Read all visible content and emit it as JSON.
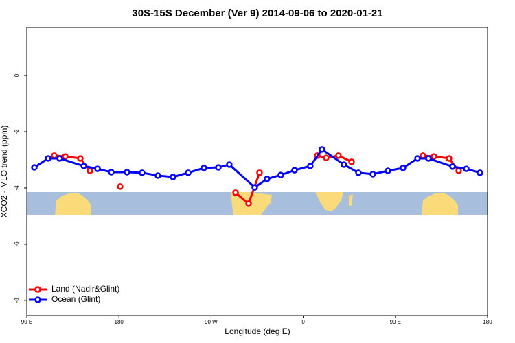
{
  "chart_data": {
    "type": "line",
    "title": "30S-15S December (Ver 9)   2014-09-06 to 2020-01-21",
    "x_label": "Longitude (deg E)",
    "y_label": "XCO2 - MLO trend (ppm)",
    "xlim": [
      90,
      540
    ],
    "ylim": [
      -8.54,
      1.71
    ],
    "xticks": [
      {
        "value": 90,
        "label": "90 E"
      },
      180,
      {
        "value": 270,
        "label": "90 W"
      },
      {
        "value": 360,
        "label": "0"
      },
      {
        "value": 450,
        "label": "90 E"
      },
      {
        "value": 540,
        "label": "180"
      }
    ],
    "yticks": [
      0,
      -2,
      -4,
      -6,
      -8
    ],
    "legend": "bottom-left",
    "series": [
      {
        "name": "Land (Nadir&Glint)",
        "color": "#ff0000",
        "x": [
          116.8,
          127.6,
          142.3,
          151.7,
          null,
          181.2,
          null,
          293.9,
          306.6,
          317.3,
          null,
          373.7,
          382.4,
          394.4,
          407.2,
          null,
          476.9,
          487.7,
          502.4,
          511.8
        ],
        "values": [
          -2.85,
          -2.88,
          -2.95,
          -3.39,
          null,
          -3.95,
          null,
          -4.17,
          -4.56,
          -3.46,
          null,
          -2.85,
          -2.93,
          -2.85,
          -3.07,
          null,
          -2.85,
          -2.88,
          -2.95,
          -3.39
        ]
      },
      {
        "name": "Ocean (Glint)",
        "color": "#0000ff",
        "x": [
          97.4,
          110.8,
          122.2,
          145.7,
          159.1,
          172.5,
          187.9,
          202.6,
          218.1,
          232.8,
          247.6,
          263.0,
          277.1,
          287.8,
          312.6,
          324.7,
          338.1,
          351.5,
          366.9,
          378.3,
          399.8,
          413.9,
          428.0,
          442.7,
          457.5,
          471.6,
          482.3,
          505.8,
          519.2,
          532.6
        ],
        "values": [
          -3.27,
          -2.95,
          -2.95,
          -3.22,
          -3.32,
          -3.44,
          -3.44,
          -3.46,
          -3.56,
          -3.61,
          -3.46,
          -3.29,
          -3.27,
          -3.17,
          -3.98,
          -3.68,
          -3.54,
          -3.37,
          -3.22,
          -2.63,
          -3.17,
          -3.46,
          -3.51,
          -3.39,
          -3.29,
          -2.95,
          -2.95,
          -3.24,
          -3.32,
          -3.46
        ]
      }
    ]
  }
}
